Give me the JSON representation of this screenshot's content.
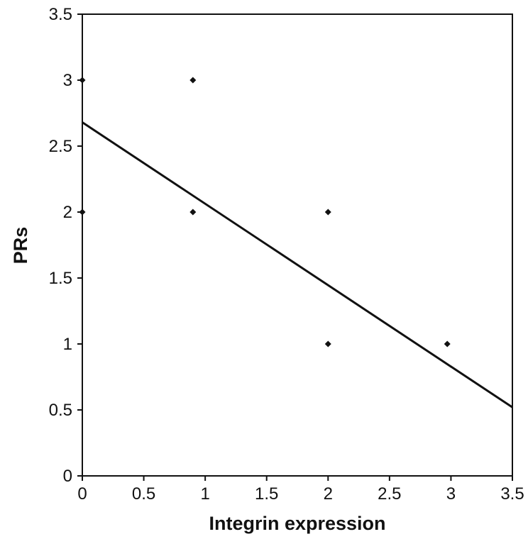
{
  "chart_data": {
    "type": "scatter",
    "title": "",
    "xlabel": "Integrin expression",
    "ylabel": "PRs",
    "xlim": [
      0,
      3.5
    ],
    "ylim": [
      0,
      3.5
    ],
    "x_ticks": [
      "0",
      "0.5",
      "1",
      "1.5",
      "2",
      "2.5",
      "3",
      "3.5"
    ],
    "y_ticks": [
      "0",
      "0.5",
      "1",
      "1.5",
      "2",
      "2.5",
      "3",
      "3.5"
    ],
    "grid": false,
    "series": [
      {
        "points": [
          {
            "x": 0,
            "y": 3
          },
          {
            "x": 0,
            "y": 2
          },
          {
            "x": 0.9,
            "y": 3
          },
          {
            "x": 0.9,
            "y": 2
          },
          {
            "x": 2,
            "y": 2
          },
          {
            "x": 2,
            "y": 1
          },
          {
            "x": 2.97,
            "y": 1
          }
        ]
      }
    ],
    "trendline": {
      "type": "linear",
      "points": [
        {
          "x": 0,
          "y": 2.68
        },
        {
          "x": 3.5,
          "y": 0.52
        }
      ]
    },
    "colors": {
      "marker": "#111111",
      "line": "#111111",
      "frame": "#111111"
    }
  }
}
